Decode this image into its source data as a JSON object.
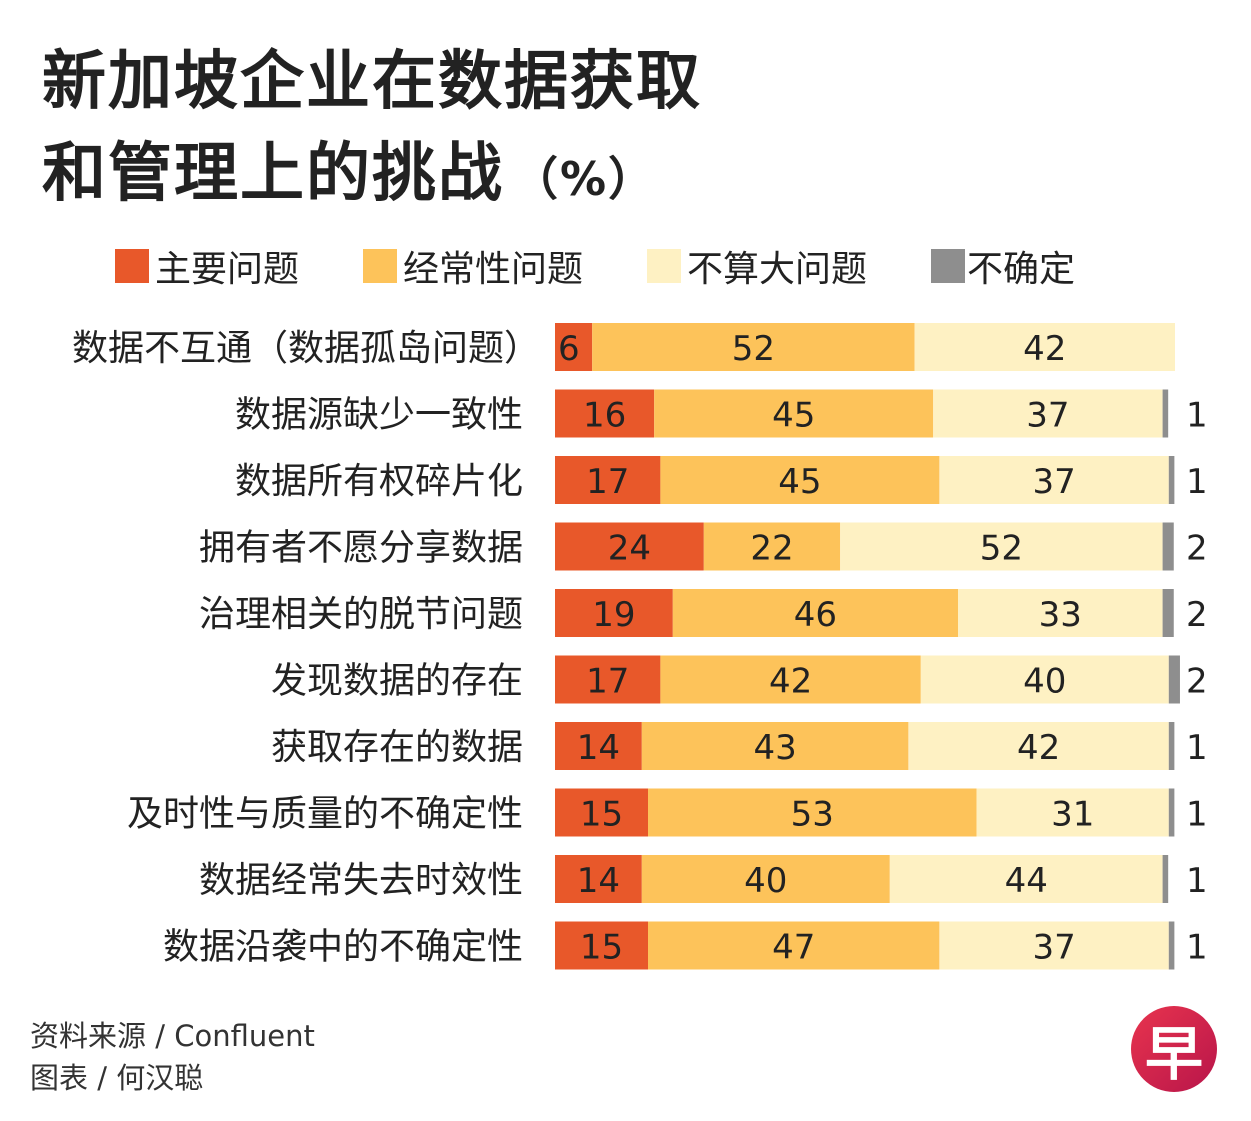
{
  "title_line1": "新加坡企业在数据获取",
  "title_line2": "和管理上的挑战",
  "unit": "（%）",
  "legend": [
    {
      "label": "主要问题",
      "color": "#E8582A"
    },
    {
      "label": "经常性问题",
      "color": "#FDC35A"
    },
    {
      "label": "不算大问题",
      "color": "#FEF1C3"
    },
    {
      "label": "不确定",
      "color": "#8E8E8E"
    }
  ],
  "chart_data": {
    "type": "bar",
    "orientation": "horizontal-stacked",
    "title": "新加坡企业在数据获取和管理上的挑战（%）",
    "categories": [
      "数据不互通（数据孤岛问题）",
      "数据源缺少一致性",
      "数据所有权碎片化",
      "拥有者不愿分享数据",
      "治理相关的脱节问题",
      "发现数据的存在",
      "获取存在的数据",
      "及时性与质量的不确定性",
      "数据经常失去时效性",
      "数据沿袭中的不确定性"
    ],
    "series": [
      {
        "name": "主要问题",
        "values": [
          6,
          16,
          17,
          24,
          19,
          17,
          14,
          15,
          14,
          15
        ]
      },
      {
        "name": "经常性问题",
        "values": [
          52,
          45,
          45,
          22,
          46,
          42,
          43,
          53,
          40,
          47
        ]
      },
      {
        "name": "不算大问题",
        "values": [
          42,
          37,
          37,
          52,
          33,
          40,
          42,
          31,
          44,
          37
        ]
      },
      {
        "name": "不确定",
        "values": [
          null,
          1,
          1,
          2,
          2,
          2,
          1,
          1,
          1,
          1
        ]
      }
    ],
    "xlim": [
      0,
      100
    ],
    "legend_position": "top"
  },
  "footer": {
    "source": "资料来源 / Confluent",
    "credit": "图表 / 何汉聪"
  },
  "logo_text": "早"
}
